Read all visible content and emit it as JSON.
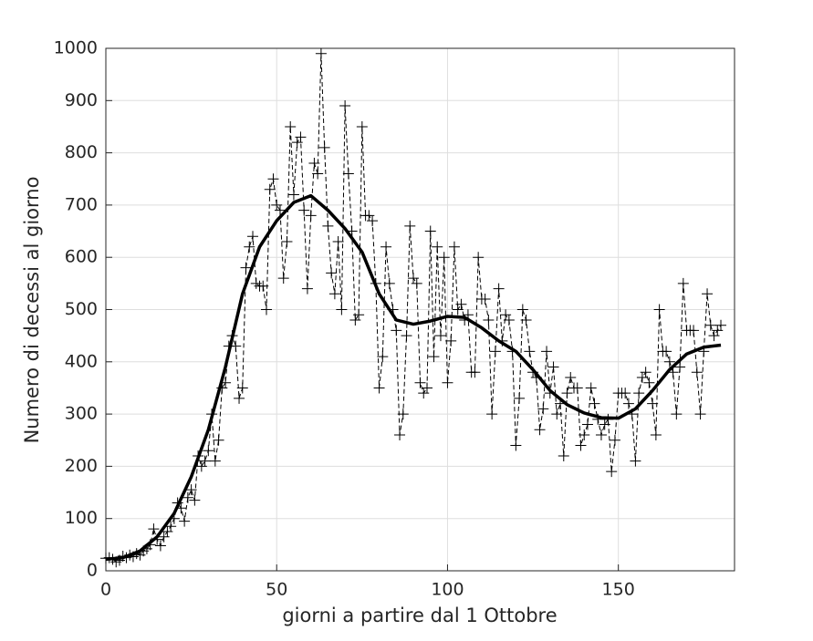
{
  "chart_data": {
    "type": "line",
    "xlabel": "giorni a partire dal 1 Ottobre",
    "ylabel": "Numero di decessi al giorno",
    "xlim": [
      0,
      184
    ],
    "ylim": [
      0,
      1000
    ],
    "xticks": [
      0,
      50,
      100,
      150
    ],
    "yticks": [
      0,
      100,
      200,
      300,
      400,
      500,
      600,
      700,
      800,
      900,
      1000
    ],
    "grid": true,
    "series": [
      {
        "color": "#000000",
        "linestyle": "dashed",
        "marker": "+",
        "x": [
          0,
          1,
          2,
          3,
          4,
          5,
          6,
          7,
          8,
          9,
          10,
          11,
          12,
          13,
          14,
          15,
          16,
          17,
          18,
          19,
          20,
          21,
          22,
          23,
          24,
          25,
          26,
          27,
          28,
          29,
          30,
          31,
          32,
          33,
          34,
          35,
          36,
          37,
          38,
          39,
          40,
          41,
          42,
          43,
          44,
          45,
          46,
          47,
          48,
          49,
          50,
          51,
          52,
          53,
          54,
          55,
          56,
          57,
          58,
          59,
          60,
          61,
          62,
          63,
          64,
          65,
          66,
          67,
          68,
          69,
          70,
          71,
          72,
          73,
          74,
          75,
          76,
          77,
          78,
          79,
          80,
          81,
          82,
          83,
          84,
          85,
          86,
          87,
          88,
          89,
          90,
          91,
          92,
          93,
          94,
          95,
          96,
          97,
          98,
          99,
          100,
          101,
          102,
          103,
          104,
          105,
          106,
          107,
          108,
          109,
          110,
          111,
          112,
          113,
          114,
          115,
          116,
          117,
          118,
          119,
          120,
          121,
          122,
          123,
          124,
          125,
          126,
          127,
          128,
          129,
          130,
          131,
          132,
          133,
          134,
          135,
          136,
          137,
          138,
          139,
          140,
          141,
          142,
          143,
          144,
          145,
          146,
          147,
          148,
          149,
          150,
          151,
          152,
          153,
          154,
          155,
          156,
          157,
          158,
          159,
          160,
          161,
          162,
          163,
          164,
          165,
          166,
          167,
          168,
          169,
          170,
          171,
          172,
          173,
          174,
          175,
          176,
          177,
          178,
          179,
          180
        ],
        "values": [
          24,
          25,
          22,
          17,
          20,
          28,
          25,
          30,
          27,
          33,
          30,
          38,
          42,
          50,
          80,
          60,
          48,
          65,
          75,
          85,
          100,
          130,
          120,
          95,
          140,
          155,
          135,
          220,
          200,
          210,
          230,
          300,
          210,
          250,
          350,
          360,
          430,
          450,
          430,
          330,
          350,
          580,
          620,
          640,
          550,
          545,
          545,
          500,
          730,
          750,
          700,
          690,
          560,
          630,
          850,
          720,
          820,
          830,
          690,
          540,
          680,
          780,
          760,
          990,
          810,
          660,
          570,
          530,
          630,
          500,
          890,
          760,
          650,
          480,
          490,
          850,
          680,
          680,
          670,
          550,
          350,
          410,
          620,
          550,
          500,
          460,
          260,
          300,
          450,
          660,
          560,
          550,
          360,
          340,
          350,
          650,
          410,
          620,
          450,
          600,
          360,
          440,
          620,
          500,
          510,
          480,
          490,
          380,
          380,
          600,
          520,
          520,
          480,
          300,
          420,
          540,
          440,
          490,
          480,
          420,
          240,
          330,
          500,
          480,
          420,
          380,
          370,
          270,
          310,
          420,
          340,
          390,
          300,
          320,
          220,
          340,
          370,
          350,
          350,
          240,
          260,
          280,
          350,
          320,
          290,
          260,
          280,
          290,
          190,
          250,
          340,
          340,
          340,
          320,
          300,
          210,
          340,
          370,
          380,
          360,
          320,
          260,
          500,
          420,
          420,
          400,
          380,
          300,
          390,
          550,
          460,
          460,
          460,
          380,
          300,
          420,
          530,
          470,
          450,
          460,
          470
        ]
      },
      {
        "color": "#000000",
        "linestyle": "solid",
        "linewidth": 3.5,
        "x": [
          0,
          5,
          10,
          15,
          20,
          25,
          30,
          35,
          40,
          45,
          50,
          55,
          60,
          65,
          70,
          75,
          80,
          85,
          90,
          95,
          100,
          105,
          110,
          115,
          120,
          125,
          130,
          135,
          140,
          145,
          150,
          155,
          160,
          165,
          170,
          175,
          180
        ],
        "values": [
          22,
          25,
          38,
          65,
          110,
          180,
          270,
          390,
          530,
          620,
          670,
          705,
          718,
          690,
          655,
          610,
          530,
          480,
          472,
          478,
          487,
          485,
          465,
          440,
          420,
          385,
          345,
          318,
          302,
          293,
          292,
          310,
          345,
          385,
          415,
          428,
          432
        ]
      }
    ]
  }
}
